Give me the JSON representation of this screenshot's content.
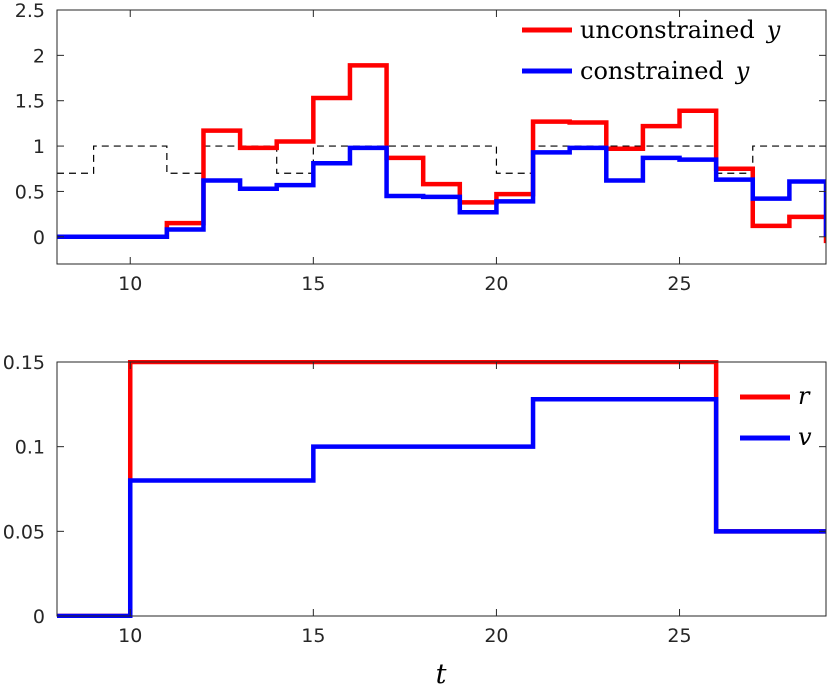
{
  "chart_data": [
    {
      "type": "line",
      "step": "post",
      "xlim": [
        8,
        29
      ],
      "ylim": [
        -0.3,
        2.5
      ],
      "xticks": [
        10,
        15,
        20,
        25
      ],
      "yticks": [
        0,
        0.5,
        1,
        1.5,
        2,
        2.5
      ],
      "xtick_labels": [
        "10",
        "15",
        "20",
        "25"
      ],
      "ytick_labels": [
        "0",
        "0.5",
        "1",
        "1.5",
        "2",
        "2.5"
      ],
      "legend_position": "top-right",
      "colors": {
        "unconstrained": "#ff0000",
        "constrained": "#0000ff",
        "bound": "#000000"
      },
      "series": [
        {
          "name": "unconstrained",
          "legend_word": "unconstrained",
          "legend_symbol": "y",
          "style": "solid",
          "x": [
            8,
            11,
            12,
            13,
            14,
            15,
            16,
            17,
            18,
            19,
            20,
            21,
            22,
            23,
            24,
            25,
            26,
            27,
            28,
            29
          ],
          "y": [
            0,
            0.15,
            1.17,
            0.98,
            1.05,
            1.53,
            1.89,
            0.87,
            0.58,
            0.38,
            0.47,
            1.27,
            1.26,
            0.97,
            1.22,
            1.39,
            0.75,
            0.12,
            0.22,
            -0.07
          ]
        },
        {
          "name": "constrained",
          "legend_word": "constrained",
          "legend_symbol": "y",
          "style": "solid",
          "x": [
            8,
            11,
            12,
            13,
            14,
            15,
            16,
            17,
            18,
            19,
            20,
            21,
            22,
            23,
            24,
            25,
            26,
            27,
            28,
            29
          ],
          "y": [
            0,
            0.08,
            0.62,
            0.53,
            0.57,
            0.81,
            0.98,
            0.45,
            0.44,
            0.27,
            0.39,
            0.93,
            0.98,
            0.62,
            0.87,
            0.85,
            0.63,
            0.42,
            0.61,
            0
          ]
        },
        {
          "name": "bound",
          "style": "dashed",
          "x": [
            8,
            9,
            11,
            12,
            14,
            15,
            18,
            20,
            21,
            24,
            26,
            27,
            29
          ],
          "y": [
            0.7,
            1,
            0.7,
            1,
            0.7,
            1,
            1,
            0.7,
            1,
            1,
            0.7,
            1,
            1
          ]
        }
      ]
    },
    {
      "type": "line",
      "step": "post",
      "xlim": [
        8,
        29
      ],
      "ylim": [
        0,
        0.15
      ],
      "xticks": [
        10,
        15,
        20,
        25
      ],
      "yticks": [
        0,
        0.05,
        0.1,
        0.15
      ],
      "xtick_labels": [
        "10",
        "15",
        "20",
        "25"
      ],
      "ytick_labels": [
        "0",
        "0.05",
        "0.1",
        "0.15"
      ],
      "xlabel": "t",
      "legend_position": "top-right",
      "colors": {
        "r": "#ff0000",
        "v": "#0000ff"
      },
      "series": [
        {
          "name": "r",
          "legend_symbol": "r",
          "x": [
            8,
            10,
            26,
            29
          ],
          "y": [
            0,
            0.15,
            0.05,
            0.05
          ]
        },
        {
          "name": "v",
          "legend_symbol": "v",
          "x": [
            8,
            10,
            15,
            21,
            26,
            29
          ],
          "y": [
            0,
            0.08,
            0.1,
            0.128,
            0.05,
            0.05
          ]
        }
      ]
    }
  ]
}
